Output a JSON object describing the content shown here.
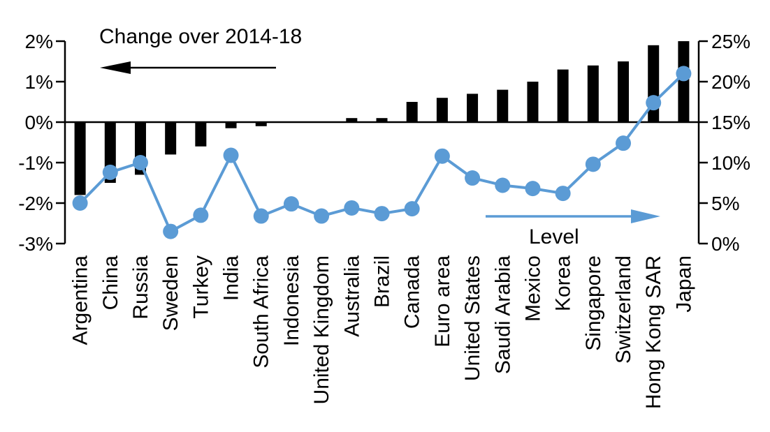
{
  "chart_data": {
    "type": "combo",
    "subtype": "bar+line, dual y-axis",
    "categories": [
      "Argentina",
      "China",
      "Russia",
      "Sweden",
      "Turkey",
      "India",
      "South Africa",
      "Indonesia",
      "United Kingdom",
      "Australia",
      "Brazil",
      "Canada",
      "Euro area",
      "United States",
      "Saudi Arabia",
      "Mexico",
      "Korea",
      "Singapore",
      "Switzerland",
      "Hong Kong SAR",
      "Japan"
    ],
    "series": [
      {
        "name": "Change over 2014-18",
        "type": "bar",
        "axis": "left",
        "color": "#000000",
        "unit": "%",
        "values": [
          -1.8,
          -1.5,
          -1.3,
          -0.8,
          -0.6,
          -0.15,
          -0.1,
          0,
          0,
          0.1,
          0.1,
          0.5,
          0.6,
          0.7,
          0.8,
          1.0,
          1.3,
          1.4,
          1.5,
          1.9,
          2.0
        ]
      },
      {
        "name": "Level",
        "type": "line",
        "axis": "right",
        "color": "#5B9BD5",
        "unit": "%",
        "values": [
          5.0,
          8.8,
          10.0,
          1.5,
          3.5,
          10.9,
          3.4,
          4.9,
          3.4,
          4.4,
          3.7,
          4.3,
          10.8,
          8.1,
          7.2,
          6.8,
          6.2,
          9.8,
          12.4,
          17.4,
          21.0
        ]
      }
    ],
    "left_axis": {
      "min": -3,
      "max": 2,
      "ticks": [
        {
          "value": 2,
          "label": "2%"
        },
        {
          "value": 1,
          "label": "1%"
        },
        {
          "value": 0,
          "label": "0%"
        },
        {
          "value": -1,
          "label": "-1%"
        },
        {
          "value": -2,
          "label": "-2%"
        },
        {
          "value": -3,
          "label": "-3%"
        }
      ]
    },
    "right_axis": {
      "min": 0,
      "max": 25,
      "ticks": [
        {
          "value": 25,
          "label": "25%"
        },
        {
          "value": 20,
          "label": "20%"
        },
        {
          "value": 15,
          "label": "15%"
        },
        {
          "value": 10,
          "label": "10%"
        },
        {
          "value": 5,
          "label": "5%"
        },
        {
          "value": 0,
          "label": "0%"
        }
      ]
    },
    "annotations": {
      "change_label": "Change over 2014-18",
      "level_label": "Level"
    },
    "legend_position": "none",
    "grid": false
  }
}
